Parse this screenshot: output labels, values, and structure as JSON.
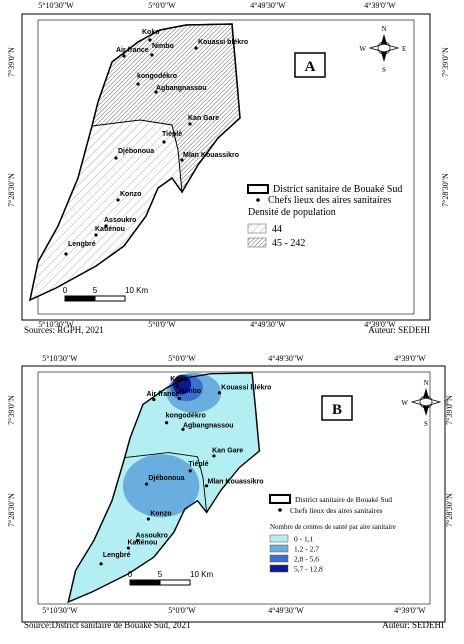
{
  "panels": [
    {
      "label": "A",
      "top_coords": [
        "5°10'30\"W",
        "5°0'0\"W",
        "4°49'30\"W",
        "4°39'0\"W"
      ],
      "bottom_coords": [
        "5°10'30\"W",
        "5°0'0\"W",
        "4°49'30\"W",
        "4°39'0\"W"
      ],
      "left_coords": [
        "7°39'0\"N",
        "7°28'30\"N"
      ],
      "right_coords": [
        "7°39'0\"N",
        "7°28'30\"N"
      ],
      "places": [
        "Koko",
        "Air france",
        "Nimbo",
        "Kouassi blékro",
        "kongodékro",
        "Agbangnassou",
        "Kan Gare",
        "Tiéplé",
        "Djébonoua",
        "Mlan Kouassikro",
        "Konzo",
        "Assoukro",
        "Katiénou",
        "Lengbré"
      ],
      "legend": {
        "boundary": "District sanitaire de Bouaké Sud",
        "points": "Chefs lieux des aires sanitaires",
        "title": "Densité de population",
        "classes": [
          "44",
          "45 - 242"
        ]
      },
      "scale": [
        "0",
        "5",
        "10 Km"
      ],
      "compass": [
        "N",
        "S",
        "W",
        "E"
      ],
      "source": "Sources: RGPH, 2021",
      "author": "Auteur: SEDEHI"
    },
    {
      "label": "B",
      "top_coords": [
        "5°10'30\"W",
        "5°0'0\"W",
        "4°49'30\"W",
        "4°39'0\"W"
      ],
      "bottom_coords": [
        "5°10'30\"W",
        "5°0'0\"W",
        "4°49'30\"W",
        "4°39'0\"W"
      ],
      "left_coords": [
        "7°39'0\"N",
        "7°28'30\"N"
      ],
      "right_coords": [
        "7°39'0\"N",
        "7°28'30\"N"
      ],
      "places": [
        "Koko",
        "Air france",
        "Nimbo",
        "Kouassi blékro",
        "kongodékro",
        "Agbangnassou",
        "Kan Gare",
        "Tiéplé",
        "Djébonoua",
        "Mlan Kouassikro",
        "Konzo",
        "Assoukro",
        "Katiénou",
        "Lengbré"
      ],
      "legend": {
        "boundary": "District sanitaire de Bouaké Sud",
        "points": "Chefs lieux des aires sanitaires",
        "title": "Nombre de centres de santé par aire sanitaire",
        "classes": [
          "0 - 1,1",
          "1,2 - 2,7",
          "2,8 - 5,6",
          "5,7 - 12,8"
        ]
      },
      "scale": [
        "0",
        "5",
        "10 Km"
      ],
      "compass": [
        "N",
        "S",
        "W",
        "E"
      ],
      "source": "Source:District sanitaire de Bouaké Sud, 2021",
      "author": "Auteur: SEDEHI"
    }
  ]
}
